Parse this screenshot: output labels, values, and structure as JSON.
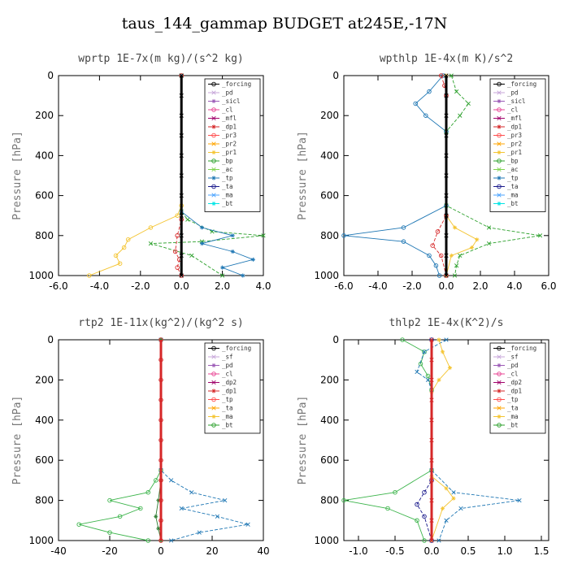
{
  "title": "taus_144_gammap  BUDGET at245E,-17N",
  "chart_data": [
    {
      "type": "line",
      "title": "wprtp  1E-7x(m kg)/(s^2 kg)",
      "ylabel": "Pressure [hPa]",
      "xlim": [
        -6,
        4
      ],
      "ylim": [
        1000,
        0
      ],
      "xticks": [
        "-6.0",
        "-4.0",
        "-2.0",
        "0.0",
        "2.0",
        "4.0"
      ],
      "yticks": [
        "0",
        "200",
        "400",
        "600",
        "800",
        "1000"
      ],
      "legend_position": "top-right",
      "legend": [
        "_forcing",
        "_pd",
        "_sicl",
        "_cl",
        "_mfl",
        "_dp1",
        "_pr3",
        "_pr2",
        "_pr1",
        "_bp",
        "_ac",
        "_tp",
        "_ta",
        "_ma",
        "_bt"
      ],
      "series": [
        {
          "name": "_pr1",
          "color": "#f4c430",
          "x": [
            0,
            0,
            -0.2,
            -1.5,
            -2.6,
            -2.8,
            -3.2,
            -3.0,
            -4.5
          ],
          "y": [
            0,
            650,
            700,
            760,
            820,
            860,
            900,
            940,
            1000
          ]
        },
        {
          "name": "_bp",
          "color": "#2ca02c",
          "x": [
            0,
            0,
            0.3,
            1.5,
            4.0,
            1.0,
            -1.5,
            0.5,
            2.0
          ],
          "y": [
            0,
            680,
            720,
            780,
            800,
            830,
            840,
            900,
            1000
          ]
        },
        {
          "name": "_tp",
          "color": "#1f77b4",
          "x": [
            0,
            0,
            1.0,
            2.5,
            1.0,
            2.5,
            3.5,
            2.0,
            3.0
          ],
          "y": [
            0,
            680,
            760,
            800,
            840,
            880,
            920,
            960,
            1000
          ]
        },
        {
          "name": "_dp1",
          "color": "#d62728",
          "x": [
            0,
            0,
            -0.2,
            -0.3,
            -0.1,
            -0.2,
            0
          ],
          "y": [
            0,
            720,
            800,
            880,
            920,
            960,
            1000
          ]
        },
        {
          "name": "_forcing",
          "color": "#000000",
          "x": [
            0,
            0,
            0,
            0,
            0,
            0,
            0,
            0,
            0,
            0,
            0
          ],
          "y": [
            0,
            100,
            200,
            300,
            400,
            500,
            600,
            700,
            800,
            900,
            1000
          ]
        }
      ]
    },
    {
      "type": "line",
      "title": "wpthlp  1E-4x(m K)/s^2",
      "ylabel": "Pressure [hPa]",
      "xlim": [
        -6,
        6
      ],
      "ylim": [
        1000,
        0
      ],
      "xticks": [
        "-6.0",
        "-4.0",
        "-2.0",
        "0.0",
        "2.0",
        "4.0",
        "6.0"
      ],
      "yticks": [
        "0",
        "200",
        "400",
        "600",
        "800",
        "1000"
      ],
      "legend_position": "top-right",
      "legend": [
        "_forcing",
        "_pd",
        "_sicl",
        "_cl",
        "_mfl",
        "_dp1",
        "_pr3",
        "_pr2",
        "_pr1",
        "_bp",
        "_ac",
        "_tp",
        "_ta",
        "_ma",
        "_bt"
      ],
      "series": [
        {
          "name": "_tp",
          "color": "#1f77b4",
          "x": [
            -0.2,
            -1.0,
            -1.8,
            -1.2,
            0,
            0,
            -2.5,
            -6.0,
            -2.5,
            -1.0,
            -0.6,
            -0.4
          ],
          "y": [
            0,
            80,
            140,
            200,
            280,
            650,
            760,
            800,
            830,
            900,
            950,
            1000
          ]
        },
        {
          "name": "_bp",
          "color": "#2ca02c",
          "x": [
            0.3,
            0.6,
            1.3,
            0.8,
            0,
            0,
            2.5,
            5.5,
            2.5,
            0.8,
            0.6,
            0.5
          ],
          "y": [
            0,
            80,
            140,
            200,
            280,
            650,
            760,
            800,
            840,
            900,
            950,
            1000
          ]
        },
        {
          "name": "_pr1",
          "color": "#f4c430",
          "x": [
            0,
            0,
            0.5,
            1.8,
            1.5,
            0.3,
            0
          ],
          "y": [
            0,
            700,
            760,
            820,
            860,
            900,
            1000
          ]
        },
        {
          "name": "_dp1",
          "color": "#d62728",
          "x": [
            -0.3,
            -0.1,
            0,
            0,
            -0.5,
            -0.8,
            -0.3,
            0
          ],
          "y": [
            0,
            50,
            100,
            700,
            780,
            850,
            900,
            1000
          ]
        },
        {
          "name": "_forcing",
          "color": "#000000",
          "x": [
            0,
            0,
            0,
            0,
            0,
            0,
            0,
            0,
            0,
            0,
            0
          ],
          "y": [
            0,
            100,
            200,
            300,
            400,
            500,
            600,
            700,
            800,
            900,
            1000
          ]
        }
      ]
    },
    {
      "type": "line",
      "title": "rtp2  1E-11x(kg^2)/(kg^2 s)",
      "ylabel": "Pressure [hPa]",
      "xlim": [
        -40,
        40
      ],
      "ylim": [
        1000,
        0
      ],
      "xticks": [
        "-40",
        "-20",
        "0",
        "20",
        "40"
      ],
      "yticks": [
        "0",
        "200",
        "400",
        "600",
        "800",
        "1000"
      ],
      "legend_position": "top-right",
      "legend": [
        "_forcing",
        "_sf",
        "_pd",
        "_cl",
        "_dp2",
        "_dp1",
        "_tp",
        "_ta",
        "_ma",
        "_bt"
      ],
      "series": [
        {
          "name": "_dp1",
          "color": "#3cb44b",
          "x": [
            0,
            0,
            -2,
            -5,
            -20,
            -8,
            -16,
            -32,
            -20,
            -5
          ],
          "y": [
            0,
            650,
            700,
            760,
            800,
            840,
            880,
            920,
            960,
            1000
          ]
        },
        {
          "name": "_tp",
          "color": "#1f77b4",
          "x": [
            0,
            0,
            4,
            12,
            25,
            8,
            22,
            34,
            15,
            4
          ],
          "y": [
            0,
            650,
            700,
            760,
            800,
            840,
            880,
            920,
            960,
            1000
          ]
        },
        {
          "name": "_dp2",
          "color": "#2e7d32",
          "x": [
            0,
            0,
            -1,
            -2,
            -1,
            0
          ],
          "y": [
            0,
            700,
            800,
            880,
            940,
            1000
          ]
        },
        {
          "name": "_forcing",
          "color": "#d62728",
          "x": [
            0,
            0,
            0,
            0,
            0,
            0,
            0,
            0,
            0,
            0,
            0
          ],
          "y": [
            0,
            100,
            200,
            300,
            400,
            500,
            600,
            700,
            800,
            900,
            1000
          ]
        }
      ]
    },
    {
      "type": "line",
      "title": "thlp2  1E-4x(K^2)/s",
      "ylabel": "Pressure [hPa]",
      "xlim": [
        -1.2,
        1.6
      ],
      "ylim": [
        1000,
        0
      ],
      "xticks": [
        "-1.0",
        "-0.5",
        "0.0",
        "0.5",
        "1.0",
        "1.5"
      ],
      "yticks": [
        "0",
        "200",
        "400",
        "600",
        "800",
        "1000"
      ],
      "legend_position": "top-right",
      "legend": [
        "_forcing",
        "_sf",
        "_pd",
        "_cl",
        "_dp2",
        "_dp1",
        "_tp",
        "_ta",
        "_ma",
        "_bt"
      ],
      "series": [
        {
          "name": "_dp1",
          "color": "#3cb44b",
          "x": [
            -0.4,
            -0.1,
            -0.15,
            -0.05,
            0,
            0,
            -0.5,
            -1.2,
            -0.6,
            -0.2,
            -0.1
          ],
          "y": [
            0,
            60,
            120,
            180,
            250,
            650,
            760,
            800,
            840,
            900,
            1000
          ]
        },
        {
          "name": "_tp",
          "color": "#1f77b4",
          "x": [
            0.2,
            -0.1,
            -0.2,
            -0.05,
            0,
            0,
            0.3,
            1.2,
            0.4,
            0.2,
            0.1
          ],
          "y": [
            0,
            60,
            160,
            200,
            250,
            650,
            760,
            800,
            840,
            900,
            1000
          ]
        },
        {
          "name": "_pd",
          "color": "#f4c430",
          "x": [
            0.1,
            0.15,
            0.25,
            0.1,
            0,
            0,
            0.2,
            0.3,
            0.15,
            0
          ],
          "y": [
            0,
            60,
            140,
            200,
            260,
            680,
            740,
            790,
            840,
            1000
          ]
        },
        {
          "name": "_ta",
          "color": "#1a1a8c",
          "x": [
            0,
            0,
            -0.1,
            -0.2,
            -0.1,
            0
          ],
          "y": [
            0,
            700,
            760,
            820,
            880,
            1000
          ]
        },
        {
          "name": "_forcing",
          "color": "#d62728",
          "x": [
            0,
            0,
            0,
            0,
            0,
            0,
            0,
            0,
            0,
            0,
            0
          ],
          "y": [
            0,
            100,
            200,
            300,
            400,
            500,
            600,
            700,
            800,
            900,
            1000
          ]
        }
      ]
    }
  ]
}
